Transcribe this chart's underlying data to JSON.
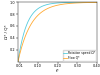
{
  "title": "",
  "xlabel": "t*",
  "ylabel": "Ω* / Q*",
  "xlim": [
    0.0,
    0.4
  ],
  "ylim": [
    0.0,
    1.0
  ],
  "xticks": [
    0.01,
    0.1,
    0.2,
    0.3,
    0.4
  ],
  "xtick_labels": [
    "0.01",
    "0.10",
    "0.20",
    "0.30",
    "0.40"
  ],
  "yticks": [
    0.2,
    0.4,
    0.6,
    0.8,
    1.0
  ],
  "ytick_labels": [
    "0.2",
    "0.4",
    "0.6",
    "0.8",
    "1.0"
  ],
  "curve_speed_color": "#55ccdd",
  "curve_flow_color": "#ffaa33",
  "legend_speed": "Rotation speed Ω*",
  "legend_flow": "Flow Q*",
  "background_color": "#ffffff",
  "grid": false,
  "speed_k": 22.0,
  "flow_k": 15.0
}
